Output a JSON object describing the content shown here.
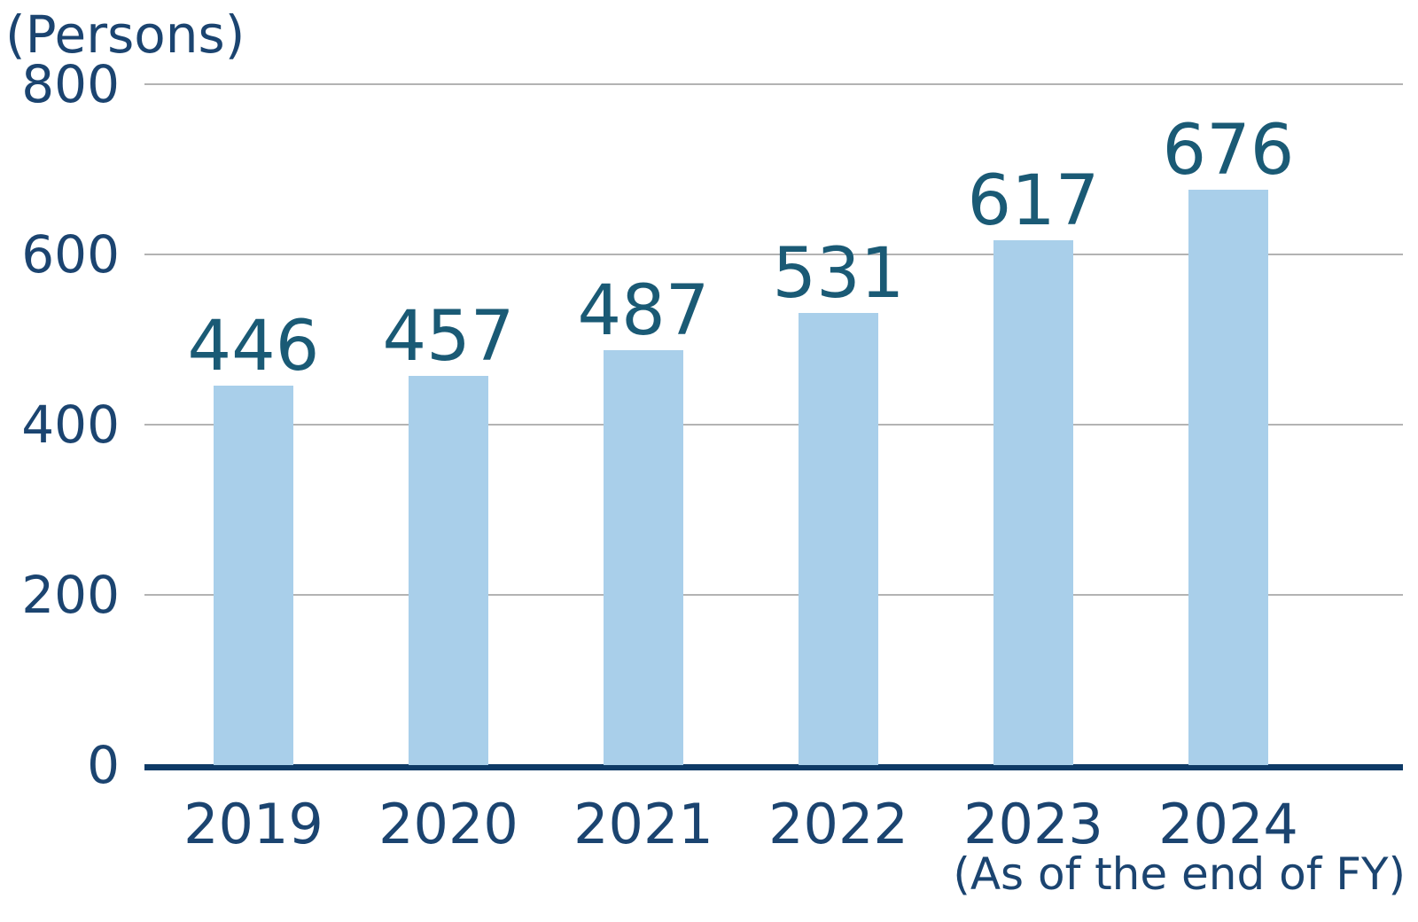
{
  "unit_label": "(Persons)",
  "footnote": "(As of the end of FY)",
  "colors": {
    "bar_fill": "#A9CFEA",
    "value_label_text": "#1A5A75",
    "axis_text": "#1B4470",
    "baseline": "#0E3A66",
    "gridline": "#B3B3B3",
    "background": "#FFFFFF"
  },
  "chart_data": {
    "type": "bar",
    "categories": [
      "2019",
      "2020",
      "2021",
      "2022",
      "2023",
      "2024"
    ],
    "values": [
      446,
      457,
      487,
      531,
      617,
      676
    ],
    "title": "",
    "xlabel": "(As of the end of FY)",
    "ylabel": "(Persons)",
    "ylim": [
      0,
      800
    ],
    "yticks": [
      0,
      200,
      400,
      600,
      800
    ],
    "grid": true,
    "legend": "none",
    "bar_color": "#A9CFEA",
    "value_labels_shown": true
  }
}
